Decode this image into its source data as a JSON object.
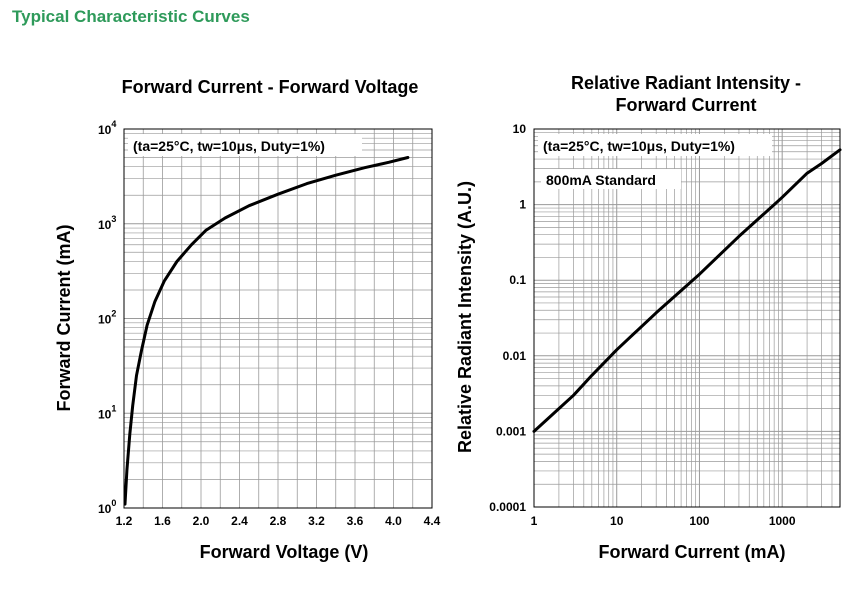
{
  "page": {
    "title": "Typical Characteristic Curves",
    "title_color": "#2e9a5a"
  },
  "chart_data": [
    {
      "type": "line",
      "title": "Forward Current - Forward Voltage",
      "annotation": "(ta=25°C, tw=10μs, Duty=1%)",
      "xlabel": "Forward Voltage (V)",
      "ylabel": "Forward Current (mA)",
      "xscale": "linear",
      "yscale": "log",
      "xlim": [
        1.2,
        4.4
      ],
      "ylim": [
        1,
        10000
      ],
      "xticks": [
        1.2,
        1.6,
        2.0,
        2.4,
        2.8,
        3.2,
        3.6,
        4.0,
        4.4
      ],
      "xtick_labels": [
        "1.2",
        "1.6",
        "2.0",
        "2.4",
        "2.8",
        "3.2",
        "3.6",
        "4.0",
        "4.4"
      ],
      "yticks": [
        {
          "base": "10",
          "exp": "0"
        },
        {
          "base": "10",
          "exp": "1"
        },
        {
          "base": "10",
          "exp": "2"
        },
        {
          "base": "10",
          "exp": "3"
        },
        {
          "base": "10",
          "exp": "4"
        }
      ],
      "grid": true,
      "series": [
        {
          "color": "#000000",
          "x": [
            1.21,
            1.23,
            1.26,
            1.29,
            1.33,
            1.38,
            1.44,
            1.52,
            1.62,
            1.75,
            1.9,
            2.05,
            2.25,
            2.5,
            2.8,
            3.1,
            3.4,
            3.7,
            3.95,
            4.15
          ],
          "y": [
            1.1,
            2.5,
            6,
            12,
            25,
            45,
            85,
            150,
            250,
            400,
            600,
            850,
            1150,
            1550,
            2050,
            2650,
            3250,
            3900,
            4450,
            5000
          ]
        }
      ]
    },
    {
      "type": "line",
      "title": "Relative Radiant Intensity - Forward Current",
      "title_lines": [
        "Relative Radiant Intensity -",
        "Forward Current"
      ],
      "annotation": "(ta=25°C, tw=10μs, Duty=1%)",
      "annotation2": "800mA Standard",
      "xlabel": "Forward Current (mA)",
      "ylabel": "Relative Radiant Intensity (A.U.)",
      "xscale": "log",
      "yscale": "log",
      "xlim": [
        1,
        5000
      ],
      "ylim": [
        0.0001,
        10
      ],
      "xticks": [
        1,
        10,
        100,
        1000
      ],
      "xtick_labels": [
        "1",
        "10",
        "100",
        "1000"
      ],
      "yticks": [
        0.0001,
        0.001,
        0.01,
        0.1,
        1,
        10
      ],
      "ytick_labels": [
        "0.0001",
        "0.001",
        "0.01",
        "0.1",
        "1",
        "10"
      ],
      "grid": true,
      "series": [
        {
          "color": "#000000",
          "x": [
            1,
            2,
            3,
            5,
            10,
            30,
            100,
            300,
            800,
            1000,
            2000,
            3000,
            5000
          ],
          "y": [
            0.001,
            0.002,
            0.003,
            0.0055,
            0.012,
            0.037,
            0.12,
            0.38,
            1.0,
            1.25,
            2.6,
            3.5,
            5.3
          ]
        }
      ]
    }
  ]
}
